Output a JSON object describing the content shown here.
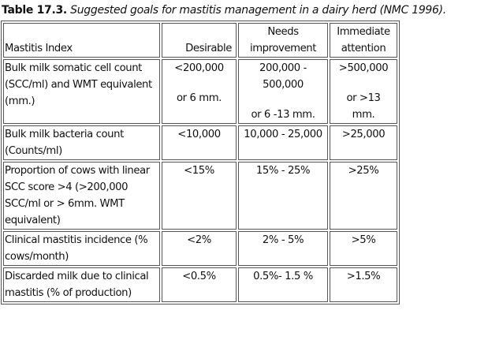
{
  "caption": {
    "label": "Table 17.3.",
    "text": "Suggested goals for mastitis management in a dairy herd (NMC 1996)."
  },
  "table": {
    "headers": [
      "Mastitis Index",
      "Desirable",
      "Needs improvement",
      "Immediate attention"
    ],
    "header_lines": {
      "needs": [
        "Needs",
        "improvement"
      ],
      "immediate": [
        "Immediate",
        "attention"
      ]
    },
    "rows": [
      {
        "index": "Bulk milk somatic cell count (SCC/ml) and WMT equivalent (mm.)",
        "desirable": [
          "<200,000",
          "or 6 mm."
        ],
        "needs": [
          "200,000 -",
          "500,000",
          "or 6 -13 mm."
        ],
        "immediate": [
          ">500,000",
          "or >13",
          "mm."
        ]
      },
      {
        "index": "Bulk milk bacteria count (Counts/ml)",
        "desirable": "<10,000",
        "needs": "10,000 - 25,000",
        "immediate": ">25,000"
      },
      {
        "index": "Proportion of cows with linear SCC score >4 (>200,000 SCC/ml or > 6mm. WMT equivalent)",
        "desirable": "<15%",
        "needs": "15% - 25%",
        "immediate": ">25%"
      },
      {
        "index": "Clinical mastitis incidence (% cows/month)",
        "desirable": "<2%",
        "needs": "2% - 5%",
        "immediate": ">5%"
      },
      {
        "index": "Discarded milk due to clinical mastitis (% of production)",
        "desirable": "<0.5%",
        "needs": "0.5%- 1.5 %",
        "immediate": ">1.5%"
      }
    ]
  }
}
